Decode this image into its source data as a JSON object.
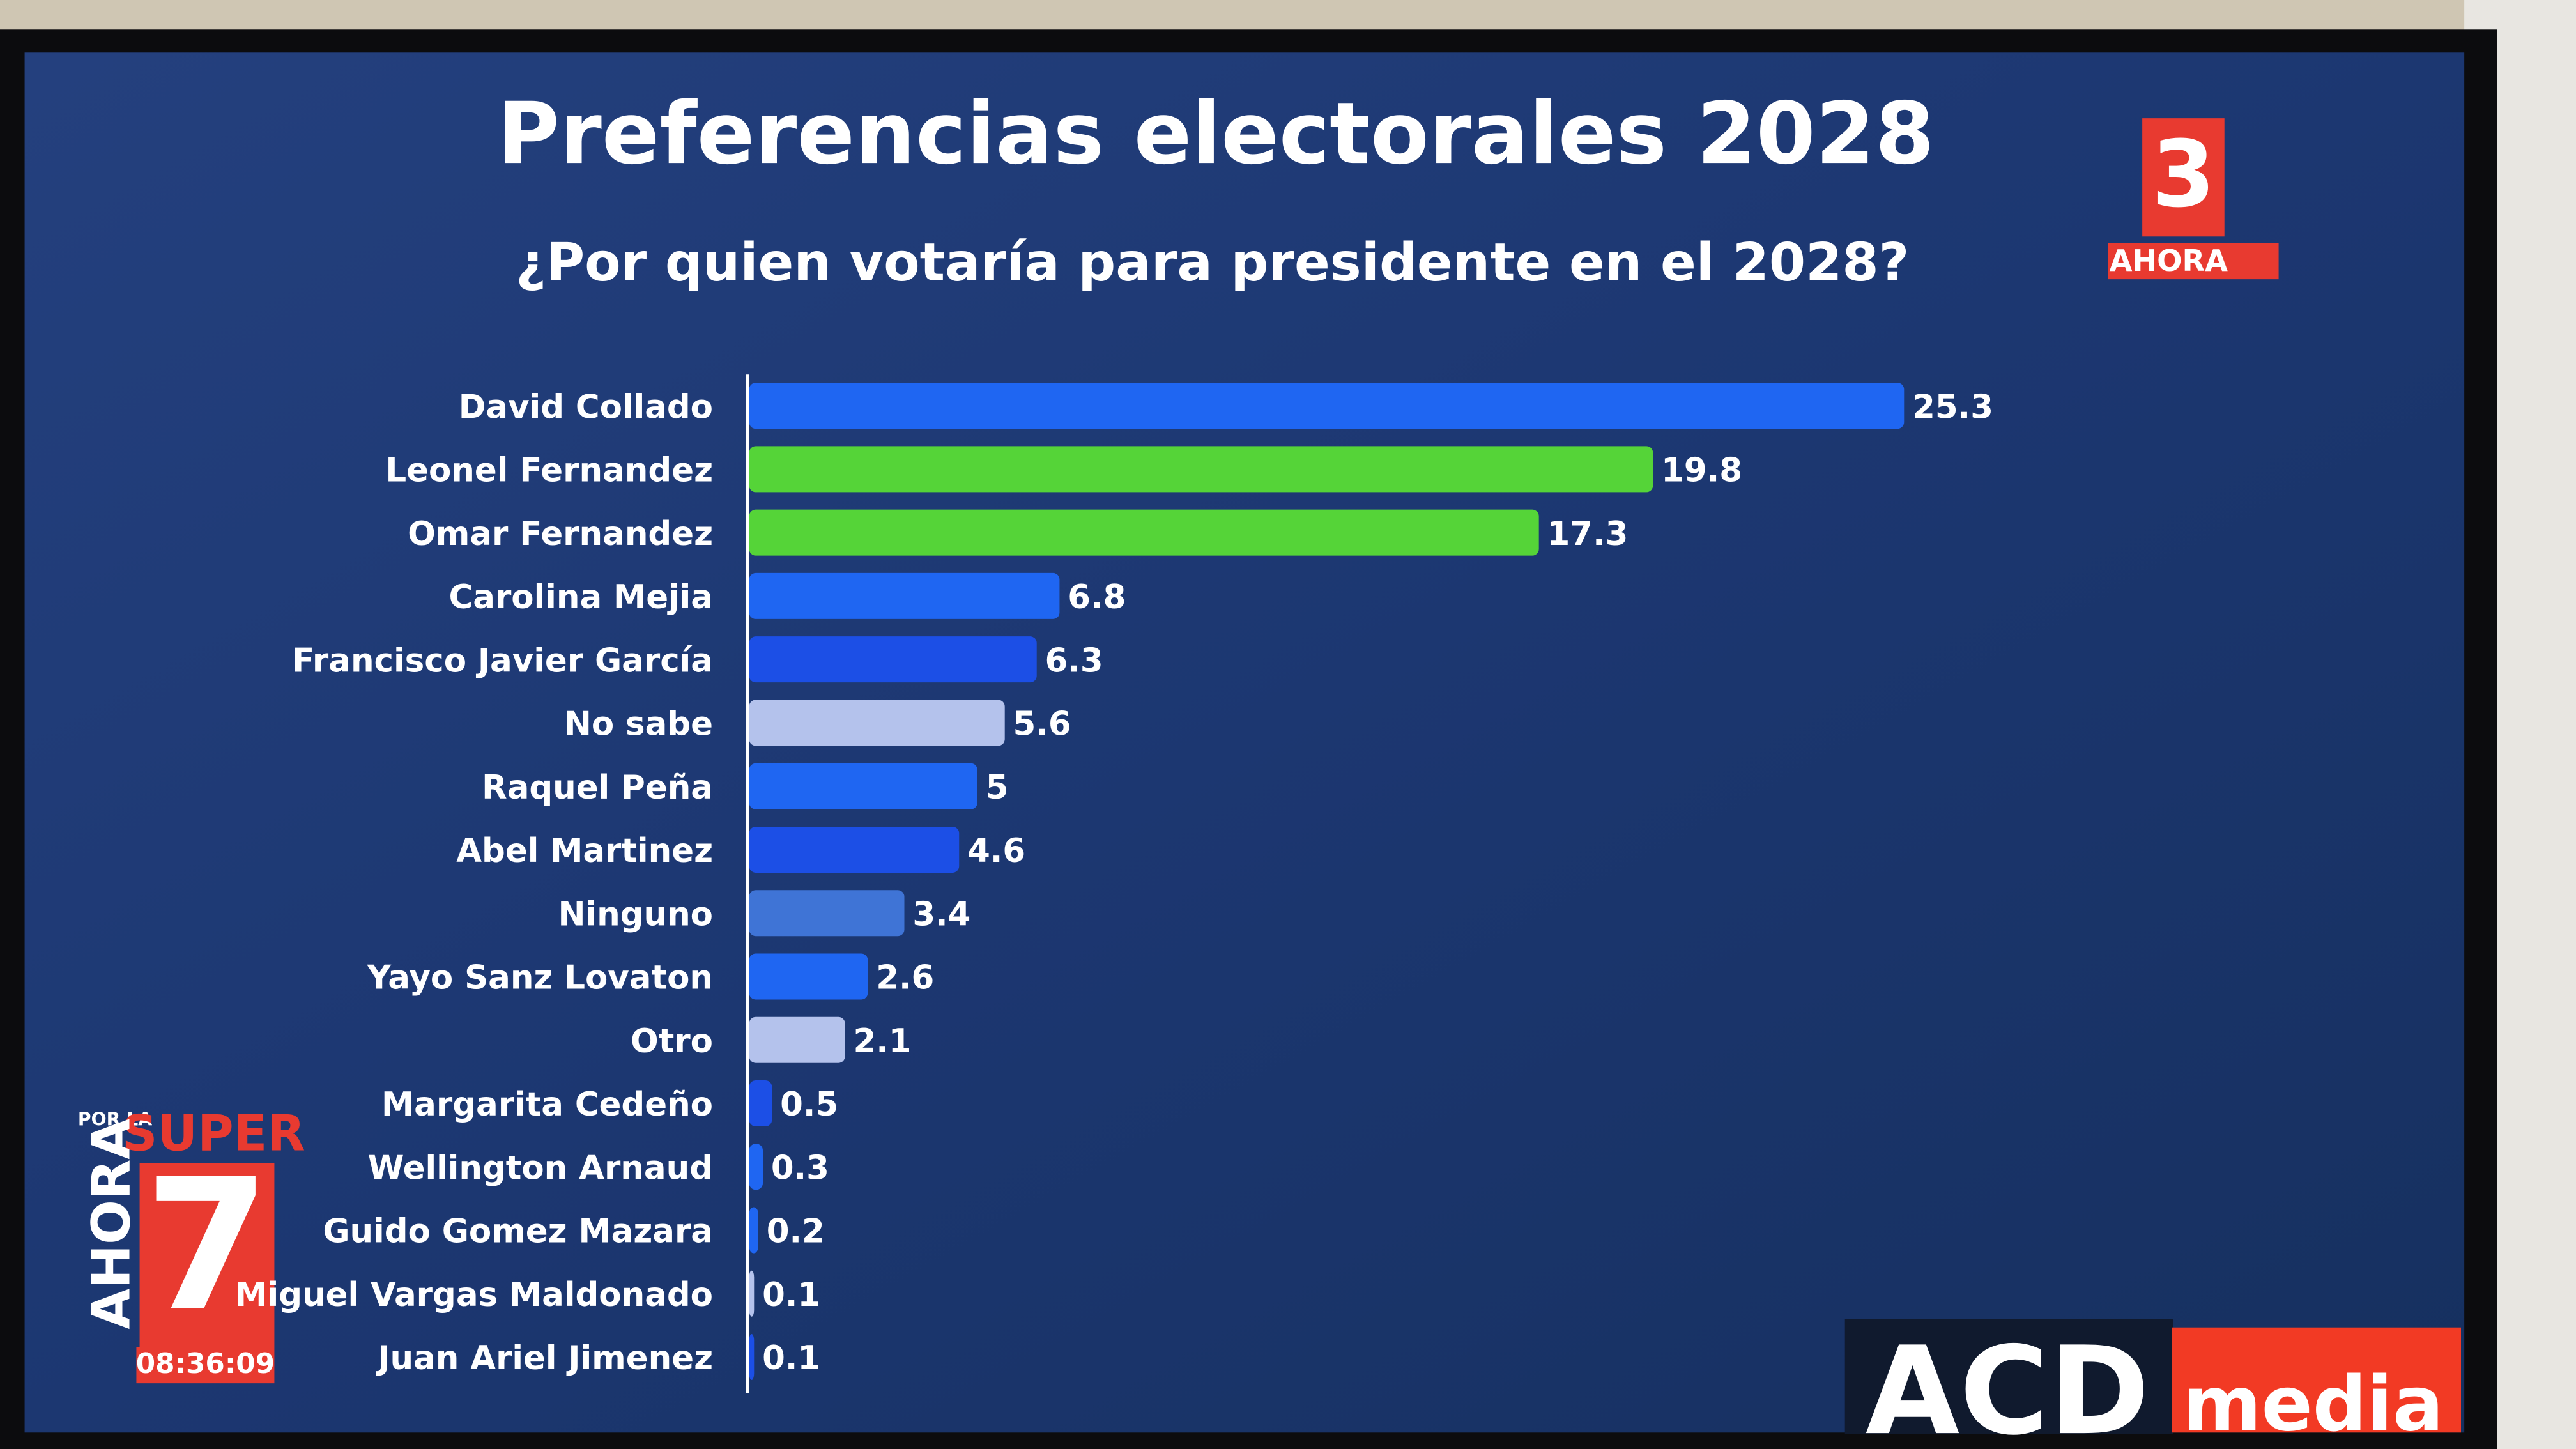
{
  "chart_data": {
    "type": "hbar",
    "title": "Preferencias electorales 2028",
    "subtitle": "¿Por quien votaría para presidente en el 2028?",
    "categories": [
      "David Collado",
      "Leonel Fernandez",
      "Omar Fernandez",
      "Carolina Mejia",
      "Francisco Javier García",
      "No sabe",
      "Raquel Peña",
      "Abel Martinez",
      "Ninguno",
      "Yayo Sanz Lovaton",
      "Otro",
      "Margarita Cedeño",
      "Wellington Arnaud",
      "Guido Gomez Mazara",
      "Miguel Vargas Maldonado",
      "Juan Ariel Jimenez"
    ],
    "values": [
      25.3,
      19.8,
      17.3,
      6.8,
      6.3,
      5.6,
      5,
      4.6,
      3.4,
      2.6,
      2.1,
      0.5,
      0.3,
      0.2,
      0.1,
      0.1
    ],
    "colors": [
      "#1f66f2",
      "#55d438",
      "#55d438",
      "#1f66f2",
      "#1c4fe6",
      "#b4c2ec",
      "#1f66f2",
      "#1c4fe6",
      "#3f74d6",
      "#1f66f2",
      "#b4c2ec",
      "#1c4fe6",
      "#1f66f2",
      "#1f66f2",
      "#b4c2ec",
      "#1c4fe6"
    ]
  },
  "logos": {
    "channel_number": "3",
    "channel_name": "AHORA",
    "show_prefix": "POR LA",
    "show_name_1": "SUPER",
    "show_number": "7",
    "show_name_2": "AHORA",
    "clock": "08:36:09",
    "brand_1": "ACD",
    "brand_2": "media"
  }
}
